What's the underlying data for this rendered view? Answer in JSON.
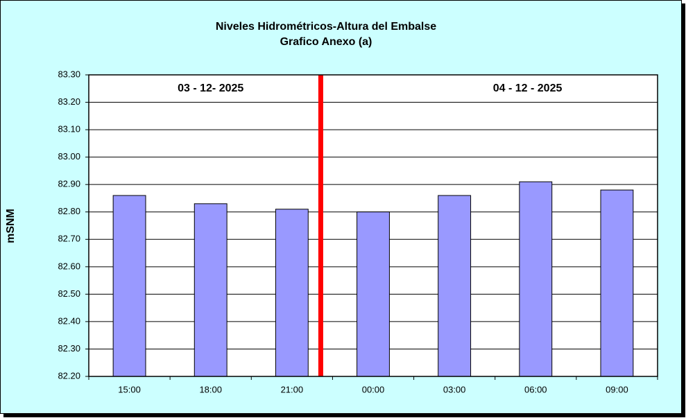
{
  "chart_data": {
    "type": "bar",
    "title": "Niveles Hidrométricos-Altura del Embalse",
    "subtitle": "Grafico Anexo (a)",
    "y_label": "mSNM",
    "annotations": [
      "03 - 12- 2025",
      "04 - 12 - 2025"
    ],
    "categories": [
      "15:00",
      "18:00",
      "21:00",
      "00:00",
      "03:00",
      "06:00",
      "09:00"
    ],
    "values": [
      82.86,
      82.83,
      82.81,
      82.8,
      82.86,
      82.91,
      82.88
    ],
    "color": "#9999ff",
    "ylim": [
      82.2,
      83.3
    ],
    "yticks": [
      {
        "value": 82.2,
        "label": "82.20"
      },
      {
        "value": 82.3,
        "label": "82.30"
      },
      {
        "value": 82.4,
        "label": "82.40"
      },
      {
        "value": 82.5,
        "label": "82.50"
      },
      {
        "value": 82.6,
        "label": "82.60"
      },
      {
        "value": 82.7,
        "label": "82.70"
      },
      {
        "value": 82.8,
        "label": "82.80"
      },
      {
        "value": 82.9,
        "label": "82.90"
      },
      {
        "value": 83.0,
        "label": "83.00"
      },
      {
        "value": 83.1,
        "label": "83.10"
      },
      {
        "value": 83.2,
        "label": "83.20"
      },
      {
        "value": 83.3,
        "label": "83.30"
      }
    ],
    "grid": true
  }
}
